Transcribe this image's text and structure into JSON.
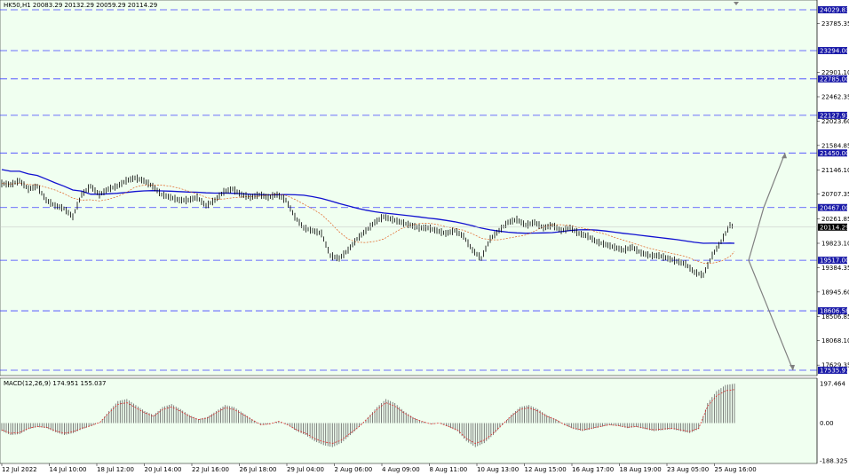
{
  "window": {
    "title": "HK50,H1  20083.29 20132.29 20059.29 20114.29",
    "macd_title": "MACD(12,26,9) 174.951 155.037"
  },
  "colors": {
    "background": "#ffffff",
    "plot_background": "#f0fff0",
    "level_lines": "#4040ff",
    "level_label_bg": "#1a1aa8",
    "ma_long": "#1010d0",
    "ma_short": "#e06020",
    "candles": "#000000",
    "projection_arrows": "#808080",
    "macd_bars": "#606060",
    "macd_signal": "#e02020",
    "current_price_bg": "#000000"
  },
  "chart_data": [
    {
      "type": "line",
      "title": "HK50,H1  20083.29 20132.29 20059.29 20114.29",
      "xlabel": "",
      "ylabel": "",
      "ylim": [
        17535.97,
        24029.83
      ],
      "grid": false,
      "x_tick_labels": [
        "12 Jul 2022",
        "14 Jul 10:00",
        "18 Jul 12:00",
        "20 Jul 14:00",
        "22 Jul 16:00",
        "26 Jul 18:00",
        "29 Jul 04:00",
        "2 Aug 06:00",
        "4 Aug 09:00",
        "8 Aug 11:00",
        "10 Aug 13:00",
        "12 Aug 15:00",
        "16 Aug 17:00",
        "18 Aug 19:00",
        "23 Aug 05:00",
        "25 Aug 16:00"
      ],
      "y_tick_labels": [
        "23785.35",
        "22901.10",
        "22462.35",
        "22023.60",
        "21584.85",
        "21146.10",
        "20707.35",
        "20261.85",
        "19823.10",
        "19384.35",
        "18945.60",
        "18506.85",
        "18068.10",
        "17629.35"
      ],
      "levels": [
        "24029.83",
        "23294.00",
        "22785.00",
        "22127.93",
        "21450.00",
        "20467.00",
        "19517.00",
        "18606.58",
        "17535.97"
      ],
      "current_price": "20114.29",
      "series": [
        {
          "name": "",
          "x_index": [
            0,
            10,
            20,
            30,
            40,
            50,
            60,
            70,
            80,
            90,
            100,
            110,
            120,
            130,
            140,
            150,
            160,
            170,
            180,
            190,
            200,
            210,
            220,
            230,
            240,
            250,
            260,
            270,
            280,
            290,
            300,
            310,
            320,
            330,
            340,
            350,
            360,
            370,
            380,
            390,
            400,
            410,
            420,
            430,
            440,
            450,
            460,
            470,
            480,
            490,
            500,
            510,
            520,
            530,
            540,
            550,
            560,
            570,
            580,
            590,
            600,
            610,
            620,
            630,
            640,
            650,
            660,
            670,
            680,
            690,
            700,
            710,
            720,
            730,
            740,
            750,
            760,
            770,
            780,
            790,
            800,
            810,
            820,
            825
          ],
          "values": [
            20900,
            20880,
            20950,
            20800,
            20850,
            20600,
            20500,
            20450,
            20300,
            20700,
            20850,
            20700,
            20800,
            20850,
            20950,
            21000,
            20950,
            20850,
            20700,
            20650,
            20600,
            20600,
            20650,
            20500,
            20600,
            20750,
            20800,
            20700,
            20650,
            20700,
            20650,
            20700,
            20600,
            20300,
            20100,
            20050,
            20000,
            19600,
            19550,
            19700,
            19900,
            20050,
            20200,
            20300,
            20250,
            20200,
            20150,
            20100,
            20100,
            20050,
            20000,
            20050,
            19950,
            19700,
            19550,
            19900,
            20050,
            20200,
            20250,
            20150,
            20200,
            20100,
            20150,
            20050,
            20100,
            20000,
            19950,
            19850,
            19800,
            19750,
            19700,
            19750,
            19650,
            19600,
            19600,
            19550,
            19500,
            19450,
            19300,
            19250,
            19600,
            19850,
            20150,
            20114
          ]
        }
      ]
    },
    {
      "type": "bar",
      "title": "MACD(12,26,9) 174.951 155.037",
      "ylim": [
        -188.325,
        197.464
      ],
      "y_tick_labels": [
        "197.464",
        "0.00",
        "-188.325"
      ],
      "series": [
        {
          "name": "",
          "values": [
            -40,
            -60,
            -55,
            -30,
            -20,
            -25,
            -45,
            -60,
            -50,
            -30,
            -15,
            5,
            60,
            110,
            120,
            90,
            60,
            40,
            80,
            95,
            70,
            40,
            20,
            30,
            60,
            90,
            80,
            50,
            20,
            -10,
            -5,
            10,
            -10,
            -40,
            -60,
            -90,
            -110,
            -120,
            -100,
            -60,
            -20,
            30,
            80,
            120,
            100,
            60,
            30,
            10,
            -5,
            0,
            -20,
            -40,
            -90,
            -120,
            -100,
            -60,
            -10,
            40,
            80,
            90,
            70,
            40,
            20,
            -10,
            -30,
            -40,
            -30,
            -20,
            -10,
            -15,
            -25,
            -20,
            -30,
            -40,
            -35,
            -30,
            -40,
            -50,
            -30,
            100,
            160,
            190,
            197
          ]
        }
      ]
    }
  ]
}
